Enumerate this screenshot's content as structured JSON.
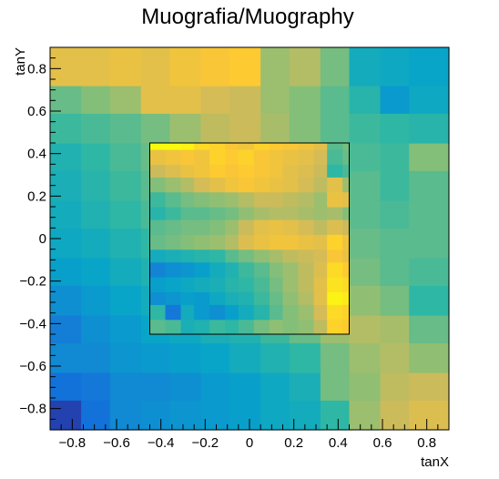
{
  "chart_data": {
    "type": "heatmap",
    "title": "Muografia/Muography",
    "xlabel": "tanX",
    "ylabel": "tanY",
    "xlim": [
      -0.9,
      0.9
    ],
    "ylim": [
      -0.9,
      0.9
    ],
    "x_ticks": [
      "−0.8",
      "−0.6",
      "−0.4",
      "−0.2",
      "0",
      "0.2",
      "0.4",
      "0.6",
      "0.8"
    ],
    "y_ticks": [
      "−0.8",
      "−0.6",
      "−0.4",
      "−0.2",
      "0",
      "0.2",
      "0.4",
      "0.6",
      "0.8"
    ],
    "x_tick_values": [
      -0.8,
      -0.6,
      -0.4,
      -0.2,
      0,
      0.2,
      0.4,
      0.6,
      0.8
    ],
    "y_tick_values": [
      -0.8,
      -0.6,
      -0.4,
      -0.2,
      0,
      0.2,
      0.4,
      0.6,
      0.8
    ],
    "outer_grid": {
      "x_edges": [
        -0.9,
        -0.76,
        -0.63,
        -0.49,
        -0.36,
        -0.22,
        -0.09,
        0.05,
        0.18,
        0.32,
        0.45,
        0.59,
        0.72,
        0.9
      ],
      "y_edges": [
        -0.9,
        -0.76,
        -0.63,
        -0.49,
        -0.36,
        -0.22,
        -0.09,
        0.05,
        0.18,
        0.32,
        0.45,
        0.59,
        0.72,
        0.9
      ],
      "values": [
        [
          0.06,
          0.2,
          0.28,
          0.3,
          0.32,
          0.34,
          0.36,
          0.4,
          0.42,
          0.5,
          0.66,
          0.74,
          0.78
        ],
        [
          0.2,
          0.22,
          0.28,
          0.28,
          0.3,
          0.34,
          0.36,
          0.4,
          0.44,
          0.6,
          0.64,
          0.72,
          0.74
        ],
        [
          0.28,
          0.28,
          0.32,
          0.34,
          0.36,
          0.38,
          0.42,
          0.46,
          0.5,
          0.6,
          0.66,
          0.7,
          0.64
        ],
        [
          0.24,
          0.3,
          0.34,
          0.38,
          0.4,
          0.44,
          0.46,
          0.52,
          0.58,
          0.66,
          0.7,
          0.68,
          0.58
        ],
        [
          0.3,
          0.34,
          0.38,
          0.42,
          0.46,
          0.5,
          0.52,
          0.56,
          0.6,
          0.66,
          0.64,
          0.6,
          0.5
        ],
        [
          0.36,
          0.38,
          0.42,
          0.46,
          0.5,
          0.52,
          0.56,
          0.58,
          0.62,
          0.64,
          0.6,
          0.56,
          0.54
        ],
        [
          0.4,
          0.42,
          0.46,
          0.5,
          0.54,
          0.58,
          0.6,
          0.62,
          0.62,
          0.62,
          0.58,
          0.56,
          0.56
        ],
        [
          0.42,
          0.46,
          0.5,
          0.54,
          0.58,
          0.62,
          0.64,
          0.64,
          0.64,
          0.6,
          0.56,
          0.54,
          0.56
        ],
        [
          0.44,
          0.48,
          0.52,
          0.56,
          0.6,
          0.66,
          0.68,
          0.66,
          0.64,
          0.6,
          0.56,
          0.52,
          0.56
        ],
        [
          0.46,
          0.5,
          0.54,
          0.58,
          0.64,
          0.7,
          0.72,
          0.68,
          0.64,
          0.58,
          0.54,
          0.52,
          0.62
        ],
        [
          0.52,
          0.54,
          0.56,
          0.6,
          0.66,
          0.72,
          0.74,
          0.68,
          0.62,
          0.56,
          0.52,
          0.5,
          0.48
        ],
        [
          0.58,
          0.62,
          0.66,
          0.8,
          0.8,
          0.76,
          0.74,
          0.66,
          0.62,
          0.56,
          0.48,
          0.34,
          0.4
        ],
        [
          0.8,
          0.8,
          0.82,
          0.8,
          0.84,
          0.86,
          0.88,
          0.66,
          0.7,
          0.6,
          0.42,
          0.4,
          0.38
        ]
      ]
    },
    "inner_box": {
      "x": [
        -0.45,
        0.45
      ],
      "y": [
        -0.45,
        0.45
      ]
    },
    "inner_grid": {
      "x_edges": [
        -0.45,
        -0.38,
        -0.31,
        -0.25,
        -0.18,
        -0.11,
        -0.05,
        0.02,
        0.09,
        0.15,
        0.22,
        0.29,
        0.35,
        0.42,
        0.45
      ],
      "y_edges": [
        -0.45,
        -0.38,
        -0.31,
        -0.25,
        -0.18,
        -0.11,
        -0.05,
        0.02,
        0.09,
        0.15,
        0.22,
        0.29,
        0.35,
        0.42,
        0.45
      ],
      "values": [
        [
          0.56,
          0.54,
          0.44,
          0.46,
          0.52,
          0.5,
          0.54,
          0.6,
          0.64,
          0.62,
          0.64,
          0.72,
          0.9,
          0.88
        ],
        [
          0.5,
          0.22,
          0.42,
          0.34,
          0.3,
          0.36,
          0.42,
          0.48,
          0.56,
          0.62,
          0.66,
          0.76,
          0.92,
          0.9
        ],
        [
          0.3,
          0.32,
          0.36,
          0.34,
          0.4,
          0.44,
          0.46,
          0.52,
          0.58,
          0.64,
          0.7,
          0.8,
          0.98,
          0.96
        ],
        [
          0.36,
          0.38,
          0.4,
          0.42,
          0.44,
          0.48,
          0.5,
          0.54,
          0.6,
          0.66,
          0.72,
          0.8,
          0.94,
          0.92
        ],
        [
          0.26,
          0.3,
          0.32,
          0.36,
          0.42,
          0.46,
          0.52,
          0.56,
          0.62,
          0.66,
          0.72,
          0.78,
          0.92,
          0.88
        ],
        [
          0.42,
          0.44,
          0.46,
          0.48,
          0.5,
          0.56,
          0.6,
          0.64,
          0.68,
          0.72,
          0.74,
          0.76,
          0.86,
          0.82
        ],
        [
          0.58,
          0.6,
          0.62,
          0.64,
          0.66,
          0.7,
          0.78,
          0.82,
          0.84,
          0.84,
          0.82,
          0.8,
          0.9,
          0.84
        ],
        [
          0.56,
          0.58,
          0.6,
          0.6,
          0.62,
          0.66,
          0.74,
          0.8,
          0.82,
          0.8,
          0.76,
          0.72,
          0.78,
          0.74
        ],
        [
          0.48,
          0.52,
          0.56,
          0.56,
          0.58,
          0.6,
          0.64,
          0.68,
          0.7,
          0.7,
          0.68,
          0.66,
          0.68,
          0.62
        ],
        [
          0.52,
          0.56,
          0.6,
          0.62,
          0.64,
          0.66,
          0.7,
          0.74,
          0.74,
          0.72,
          0.7,
          0.66,
          0.82,
          0.8
        ],
        [
          0.62,
          0.66,
          0.7,
          0.76,
          0.8,
          0.84,
          0.86,
          0.84,
          0.82,
          0.8,
          0.76,
          0.72,
          0.8,
          0.66
        ],
        [
          0.74,
          0.78,
          0.82,
          0.84,
          0.88,
          0.86,
          0.88,
          0.86,
          0.84,
          0.8,
          0.78,
          0.74,
          0.5,
          0.54
        ],
        [
          0.82,
          0.84,
          0.86,
          0.84,
          0.9,
          0.88,
          0.9,
          0.86,
          0.84,
          0.82,
          0.8,
          0.76,
          0.54,
          0.58
        ],
        [
          1.0,
          1.0,
          0.98,
          0.92,
          0.9,
          0.86,
          0.84,
          0.9,
          0.88,
          0.86,
          0.84,
          0.8,
          0.56,
          0.6
        ]
      ]
    },
    "palette": [
      "#352a87",
      "#0f5cdd",
      "#1481d6",
      "#06a4ca",
      "#2eb7a4",
      "#87bf77",
      "#d1bb59",
      "#fec832",
      "#f9fb0e"
    ],
    "grid": false,
    "legend": "none"
  }
}
